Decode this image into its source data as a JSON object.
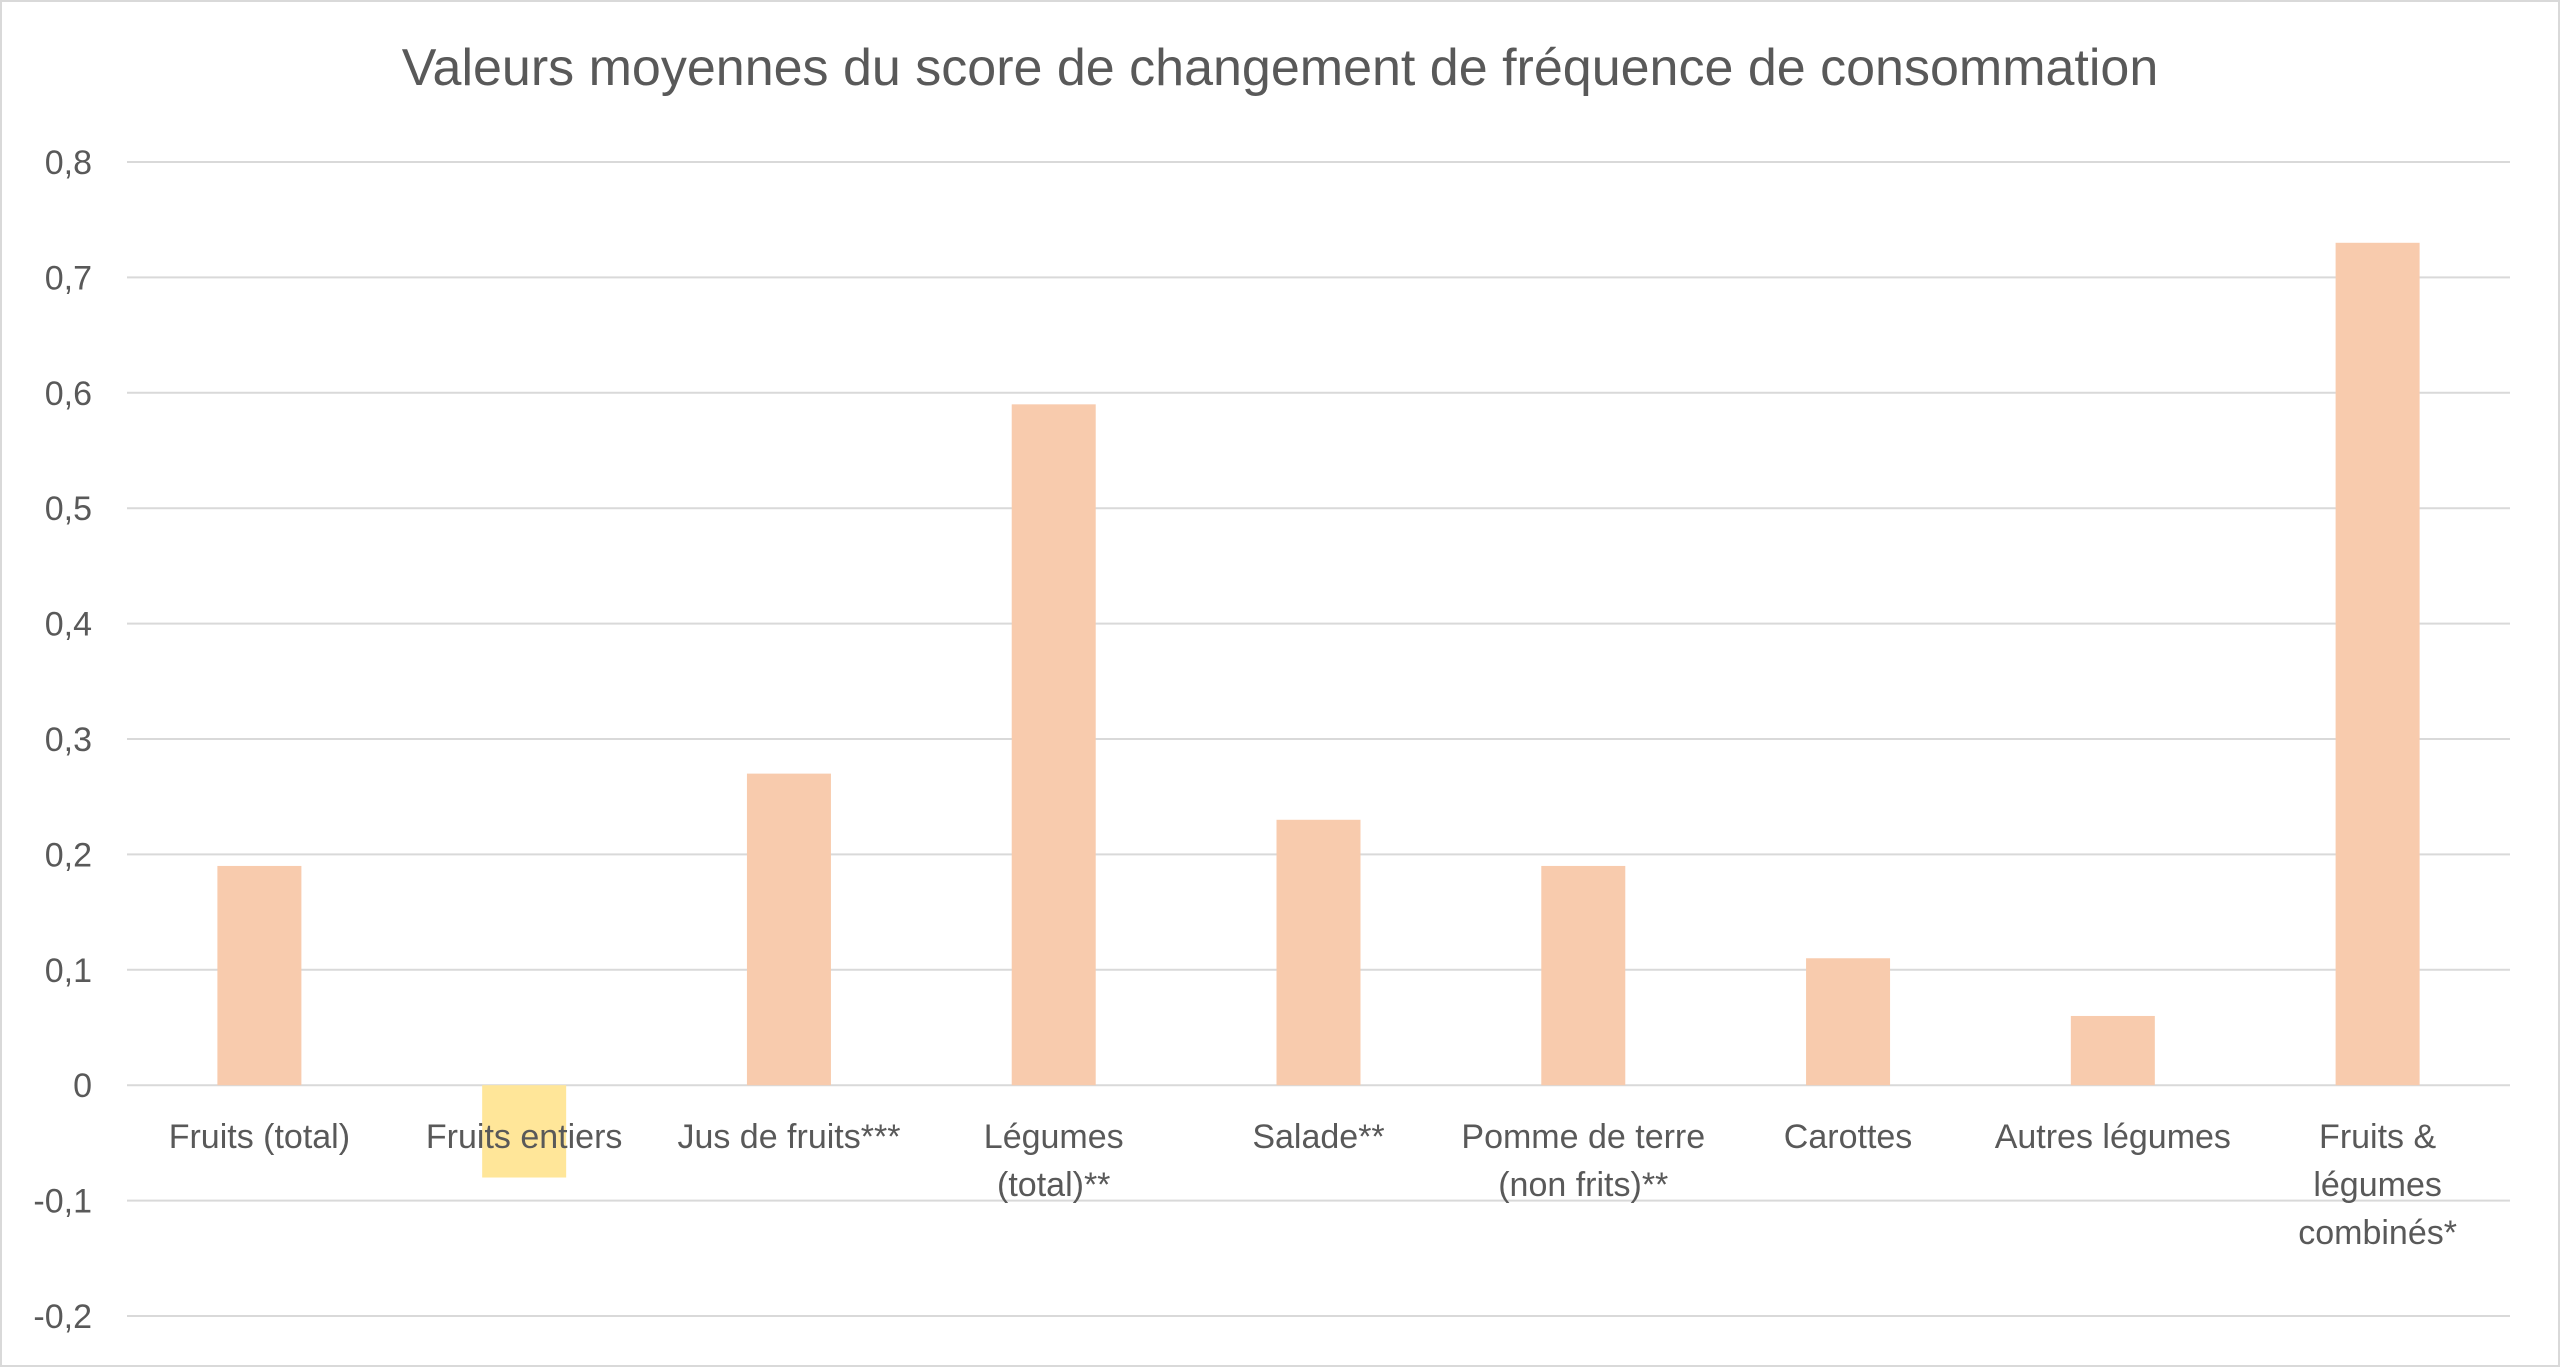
{
  "chart_data": {
    "type": "bar",
    "title": "Valeurs moyennes du score de changement de fréquence de consommation",
    "xlabel": "",
    "ylabel": "",
    "ylim": [
      -0.2,
      0.8
    ],
    "yticks": [
      -0.2,
      -0.1,
      0,
      0.1,
      0.2,
      0.3,
      0.4,
      0.5,
      0.6,
      0.7,
      0.8
    ],
    "ytick_labels": [
      "-0,2",
      "-0,1",
      "0",
      "0,1",
      "0,2",
      "0,3",
      "0,4",
      "0,5",
      "0,6",
      "0,7",
      "0,8"
    ],
    "grid": true,
    "legend": "none",
    "categories": [
      [
        "Fruits (total)"
      ],
      [
        "Fruits entiers"
      ],
      [
        "Jus de fruits***"
      ],
      [
        "Légumes",
        "(total)**"
      ],
      [
        "Salade**"
      ],
      [
        "Pomme de terre",
        "(non frits)**"
      ],
      [
        "Carottes"
      ],
      [
        "Autres légumes"
      ],
      [
        "Fruits &",
        "légumes",
        "combinés*"
      ]
    ],
    "values": [
      0.19,
      -0.08,
      0.27,
      0.59,
      0.23,
      0.19,
      0.11,
      0.06,
      0.73
    ],
    "bar_colors": [
      "#f8cbad",
      "#ffe699",
      "#f8cbad",
      "#f8cbad",
      "#f8cbad",
      "#f8cbad",
      "#f8cbad",
      "#f8cbad",
      "#f8cbad"
    ],
    "colors": {
      "gridline": "#d9d9d9",
      "text": "#595959",
      "border": "#d9d9d9"
    }
  }
}
